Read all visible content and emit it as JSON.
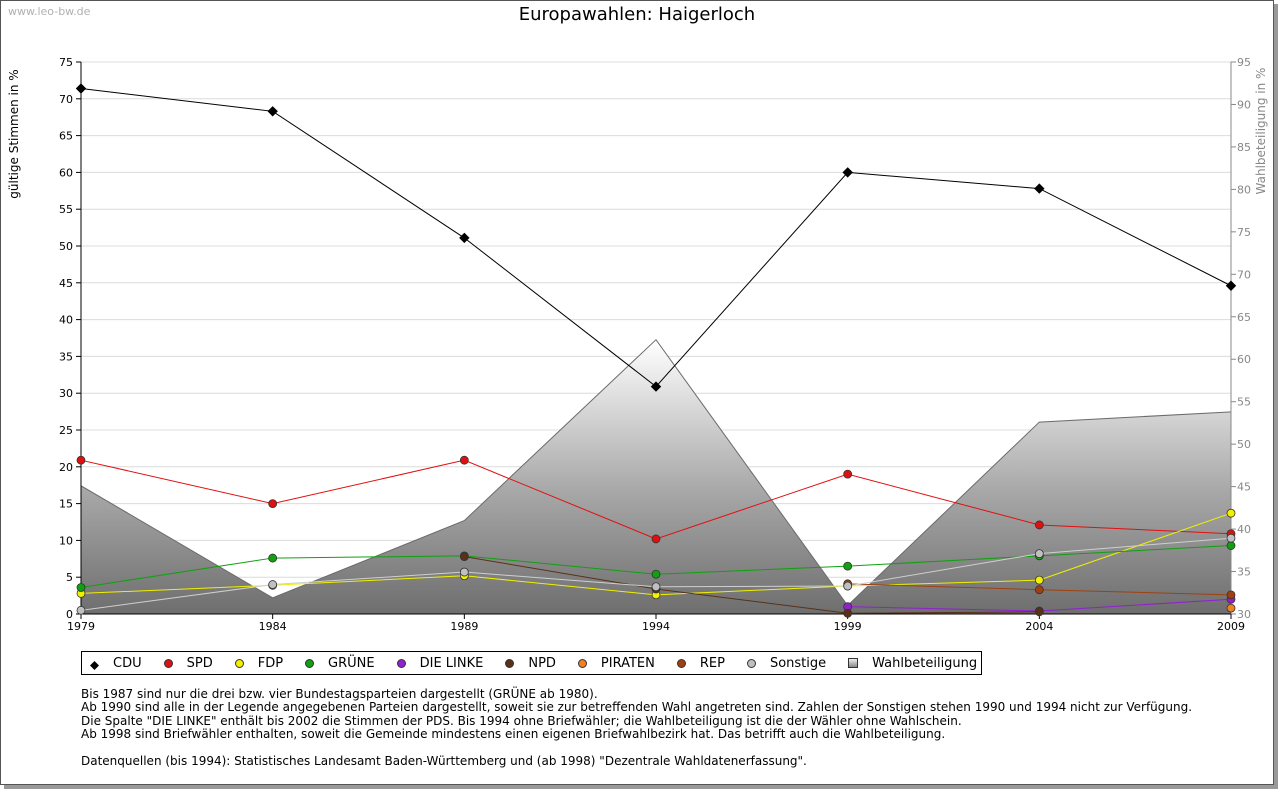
{
  "watermark": "www.leo-bw.de",
  "title": "Europawahlen: Haigerloch",
  "chart_data": {
    "type": "line",
    "title": "Europawahlen: Haigerloch",
    "x": [
      "1979",
      "1984",
      "1989",
      "1994",
      "1999",
      "2004",
      "2009"
    ],
    "ylabel": "gültige Stimmen in %",
    "ylabel_right": "Wahlbeteiligung in %",
    "ylim": [
      0,
      75
    ],
    "ylim_right": [
      30,
      95
    ],
    "yticks": [
      0,
      5,
      10,
      15,
      20,
      25,
      30,
      35,
      40,
      45,
      50,
      55,
      60,
      65,
      70,
      75
    ],
    "yticks_right": [
      30,
      35,
      40,
      45,
      50,
      55,
      60,
      65,
      70,
      75,
      80,
      85,
      90,
      95
    ],
    "grid": true,
    "legend_position": "bottom",
    "series": [
      {
        "name": "CDU",
        "color": "#000000",
        "values": [
          71.4,
          68.3,
          51.1,
          30.9,
          60.0,
          57.8,
          44.6
        ]
      },
      {
        "name": "SPD",
        "color": "#e01010",
        "values": [
          20.9,
          15.0,
          20.9,
          10.2,
          19.0,
          12.1,
          10.9
        ]
      },
      {
        "name": "FDP",
        "color": "#f0f000",
        "values": [
          2.8,
          3.9,
          5.2,
          2.6,
          3.8,
          4.6,
          13.7
        ]
      },
      {
        "name": "GRÜNE",
        "color": "#10a010",
        "values": [
          3.6,
          7.6,
          7.9,
          5.4,
          6.5,
          7.9,
          9.3
        ]
      },
      {
        "name": "DIE LINKE",
        "color": "#9020d0",
        "values": [
          null,
          null,
          null,
          null,
          1.0,
          0.4,
          2.0
        ]
      },
      {
        "name": "NPD",
        "color": "#5a3018",
        "values": [
          null,
          null,
          7.8,
          3.4,
          0.1,
          0.3,
          null
        ]
      },
      {
        "name": "PIRATEN",
        "color": "#f08020",
        "values": [
          null,
          null,
          null,
          null,
          null,
          null,
          0.8
        ]
      },
      {
        "name": "REP",
        "color": "#a04010",
        "values": [
          null,
          null,
          null,
          null,
          4.1,
          3.3,
          2.6
        ]
      },
      {
        "name": "Sonstige",
        "color": "#c0c0c0",
        "values": [
          0.5,
          4.0,
          5.7,
          3.7,
          3.8,
          8.2,
          10.3
        ]
      }
    ],
    "area_series": {
      "name": "Wahlbeteiligung",
      "axis": "right",
      "values": [
        45.1,
        31.9,
        41.0,
        62.3,
        31.0,
        52.6,
        53.8
      ]
    }
  },
  "legend": [
    {
      "label": "CDU",
      "marker": "diamond",
      "color": "#000000"
    },
    {
      "label": "SPD",
      "marker": "circle",
      "color": "#e01010"
    },
    {
      "label": "FDP",
      "marker": "circle",
      "color": "#f0f000"
    },
    {
      "label": "GRÜNE",
      "marker": "circle",
      "color": "#10a010"
    },
    {
      "label": "DIE LINKE",
      "marker": "circle",
      "color": "#9020d0"
    },
    {
      "label": "NPD",
      "marker": "circle",
      "color": "#5a3018"
    },
    {
      "label": "PIRATEN",
      "marker": "circle",
      "color": "#f08020"
    },
    {
      "label": "REP",
      "marker": "circle",
      "color": "#a04010"
    },
    {
      "label": "Sonstige",
      "marker": "circle",
      "color": "#c0c0c0"
    },
    {
      "label": "Wahlbeteiligung",
      "marker": "square",
      "color": "#999999"
    }
  ],
  "notes": [
    "Bis 1987 sind nur die drei bzw. vier Bundestagsparteien dargestellt (GRÜNE ab 1980).",
    "Ab 1990 sind alle in der Legende angegebenen Parteien dargestellt, soweit sie zur betreffenden Wahl angetreten sind. Zahlen der Sonstigen stehen 1990 und 1994 nicht zur Verfügung.",
    "Die Spalte \"DIE LINKE\" enthält bis 2002 die Stimmen der PDS. Bis 1994 ohne Briefwähler; die Wahlbeteiligung ist die der Wähler ohne Wahlschein.",
    "Ab 1998 sind Briefwähler enthalten, soweit die Gemeinde mindestens einen eigenen Briefwahlbezirk hat. Das betrifft auch die Wahlbeteiligung."
  ],
  "source": "Datenquellen (bis 1994): Statistisches Landesamt Baden-Württemberg und (ab 1998) \"Dezentrale Wahldatenerfassung\"."
}
